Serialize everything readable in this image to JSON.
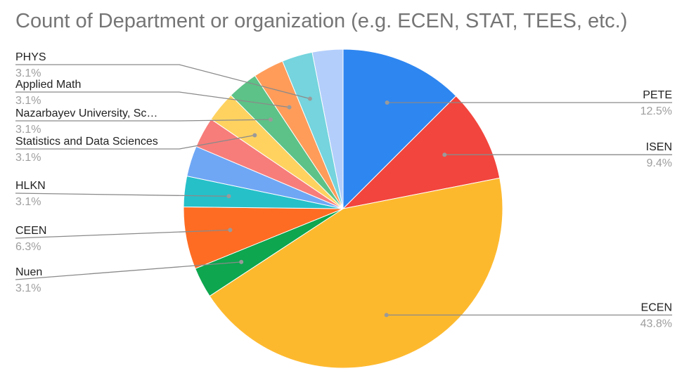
{
  "chart_data": {
    "type": "pie",
    "title": "Count of Department or organization (e.g. ECEN, STAT, TEES, etc.)",
    "slices": [
      {
        "label": "PETE",
        "value": 12.5,
        "pct_label": "12.5%",
        "color": "#2e86f0"
      },
      {
        "label": "ISEN",
        "value": 9.4,
        "pct_label": "9.4%",
        "color": "#f2453d"
      },
      {
        "label": "ECEN",
        "value": 43.8,
        "pct_label": "43.8%",
        "color": "#fdb92e"
      },
      {
        "label": "Nuen",
        "value": 3.1,
        "pct_label": "3.1%",
        "color": "#0ea64f"
      },
      {
        "label": "CEEN",
        "value": 6.3,
        "pct_label": "6.3%",
        "color": "#fe6c23"
      },
      {
        "label": "HLKN",
        "value": 3.1,
        "pct_label": "3.1%",
        "color": "#26c0c9"
      },
      {
        "label": "",
        "value": 3.1,
        "pct_label": "",
        "color": "#6fa7f5"
      },
      {
        "label": "",
        "value": 3.1,
        "pct_label": "",
        "color": "#f77d7a"
      },
      {
        "label": "Statistics and Data Sciences",
        "value": 3.1,
        "pct_label": "3.1%",
        "color": "#ffd260"
      },
      {
        "label": "Nazarbayev University, Sc…",
        "value": 3.1,
        "pct_label": "3.1%",
        "color": "#5dc287"
      },
      {
        "label": "Applied Math",
        "value": 3.1,
        "pct_label": "3.1%",
        "color": "#ff9c5a"
      },
      {
        "label": "PHYS",
        "value": 3.1,
        "pct_label": "3.1%",
        "color": "#75d4dd"
      },
      {
        "label": "",
        "value": 3.1,
        "pct_label": "",
        "color": "#b3cefb"
      }
    ],
    "legend": "none",
    "label_style": "leader-lines"
  }
}
